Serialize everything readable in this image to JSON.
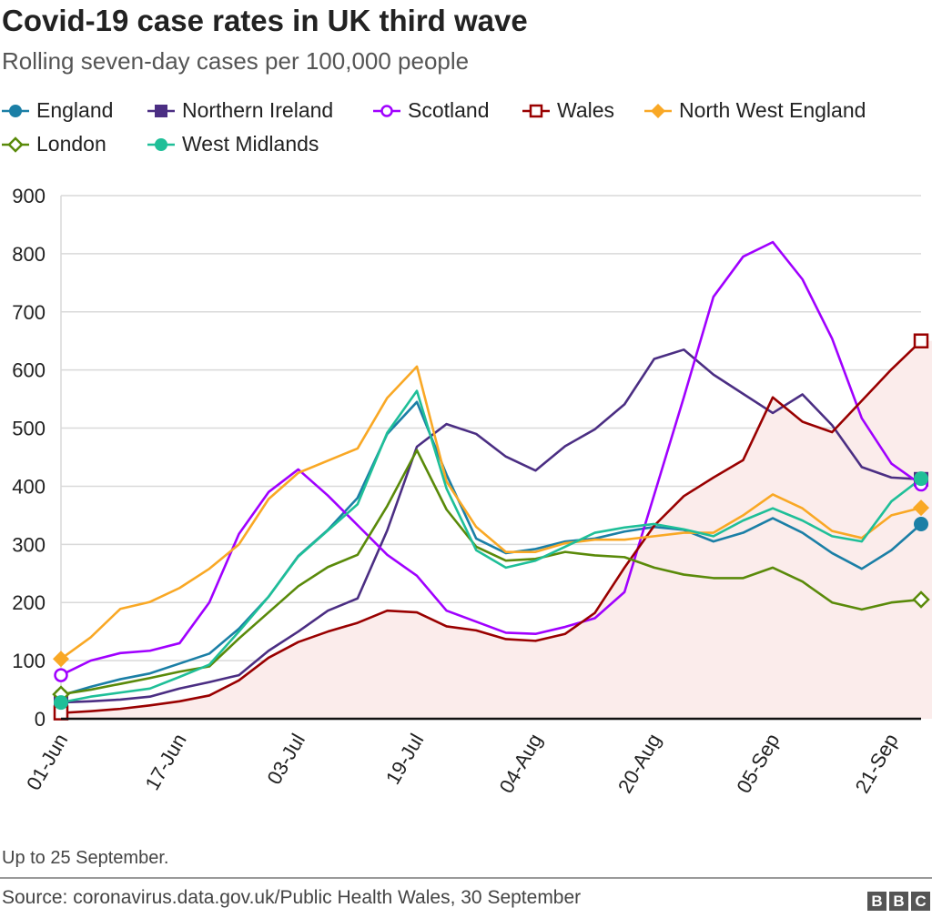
{
  "title": "Covid-19 case rates in UK third wave",
  "subtitle": "Rolling seven-day cases per 100,000 people",
  "note": "Up to 25 September.",
  "source": "Source: coronavirus.data.gov.uk/Public Health Wales, 30 September",
  "logo": "BBC",
  "chart_data": {
    "type": "line",
    "title": "Covid-19 case rates in UK third wave",
    "ylabel": "",
    "xlabel": "",
    "ylim": [
      0,
      900
    ],
    "yticks": [
      "0",
      "100",
      "200",
      "300",
      "400",
      "500",
      "600",
      "700",
      "800",
      "900"
    ],
    "xticks": [
      "01-Jun",
      "17-Jun",
      "03-Jul",
      "19-Jul",
      "04-Aug",
      "20-Aug",
      "05-Sep",
      "21-Sep"
    ],
    "grid": true,
    "legend": "top",
    "x": [
      "01-Jun",
      "05-Jun",
      "09-Jun",
      "13-Jun",
      "17-Jun",
      "21-Jun",
      "25-Jun",
      "29-Jun",
      "03-Jul",
      "07-Jul",
      "11-Jul",
      "15-Jul",
      "19-Jul",
      "23-Jul",
      "27-Jul",
      "31-Jul",
      "04-Aug",
      "08-Aug",
      "12-Aug",
      "16-Aug",
      "20-Aug",
      "24-Aug",
      "28-Aug",
      "01-Sep",
      "05-Sep",
      "09-Sep",
      "13-Sep",
      "17-Sep",
      "21-Sep",
      "25-Sep"
    ],
    "series": [
      {
        "name": "England",
        "color": "#1b7fa6",
        "marker": "circle",
        "values": [
          40,
          55,
          68,
          78,
          95,
          112,
          155,
          210,
          280,
          325,
          380,
          490,
          545,
          420,
          310,
          285,
          292,
          305,
          310,
          322,
          330,
          325,
          305,
          320,
          345,
          320,
          285,
          258,
          290,
          335
        ]
      },
      {
        "name": "Northern Ireland",
        "color": "#4b2e83",
        "marker": "square",
        "values": [
          28,
          30,
          33,
          38,
          52,
          63,
          75,
          117,
          150,
          186,
          207,
          324,
          468,
          507,
          490,
          451,
          427,
          469,
          498,
          541,
          619,
          635,
          592,
          559,
          526,
          558,
          505,
          433,
          415,
          412
        ]
      },
      {
        "name": "Scotland",
        "color": "#a000ff",
        "marker": "circle-open",
        "values": [
          75,
          100,
          113,
          117,
          130,
          200,
          318,
          390,
          429,
          384,
          333,
          282,
          246,
          186,
          167,
          148,
          146,
          158,
          173,
          218,
          385,
          553,
          726,
          795,
          820,
          756,
          654,
          517,
          439,
          403
        ]
      },
      {
        "name": "Wales",
        "color": "#990000",
        "marker": "square-open",
        "fill": "#fbeceb",
        "values": [
          10,
          13,
          17,
          23,
          30,
          40,
          66,
          105,
          132,
          150,
          165,
          186,
          183,
          159,
          152,
          137,
          134,
          146,
          182,
          260,
          332,
          383,
          415,
          445,
          553,
          511,
          493,
          547,
          601,
          650
        ]
      },
      {
        "name": "North West England",
        "color": "#f9a825",
        "marker": "diamond",
        "values": [
          103,
          140,
          189,
          201,
          225,
          258,
          300,
          378,
          423,
          444,
          465,
          552,
          606,
          408,
          330,
          287,
          287,
          302,
          308,
          308,
          314,
          320,
          320,
          350,
          386,
          362,
          323,
          311,
          350,
          363
        ]
      },
      {
        "name": "London",
        "color": "#5a8a0a",
        "marker": "diamond-open",
        "values": [
          42,
          50,
          60,
          70,
          81,
          90,
          138,
          183,
          228,
          261,
          282,
          366,
          462,
          360,
          296,
          272,
          275,
          287,
          281,
          278,
          260,
          248,
          242,
          242,
          260,
          236,
          200,
          188,
          200,
          205
        ]
      },
      {
        "name": "West Midlands",
        "color": "#1fbf98",
        "marker": "circle",
        "values": [
          28,
          38,
          45,
          52,
          72,
          93,
          150,
          210,
          279,
          324,
          369,
          492,
          564,
          396,
          290,
          260,
          272,
          296,
          320,
          329,
          335,
          326,
          314,
          341,
          362,
          341,
          314,
          305,
          374,
          413
        ]
      }
    ]
  }
}
